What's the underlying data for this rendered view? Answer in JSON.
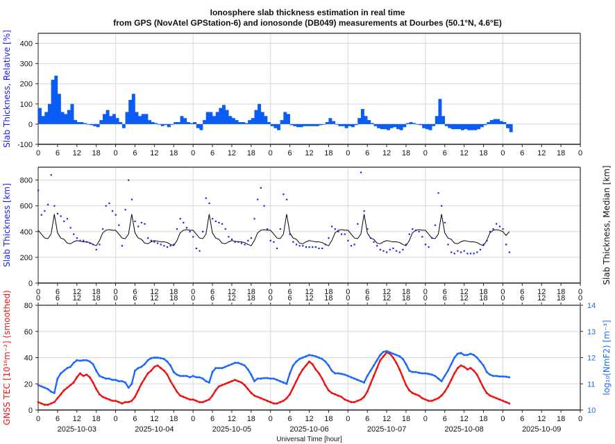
{
  "chart_data": [
    {
      "type": "bar",
      "title": "Ionosphere slab thickness estimation in real time",
      "subtitle": "from GPS (NovAtel GPStation-6) and ionosonde (DB049) measurements at Dourbes (50.1°N, 4.6°E)",
      "ylabel": "Slab Thickness, Relative [%]",
      "ylim": [
        -100,
        450
      ],
      "yticks": [
        "-100",
        "0",
        "100",
        "200",
        "300",
        "400"
      ],
      "x_unit": "hour since 2025-10-03 00:00 UT",
      "xlim": [
        0,
        168
      ],
      "values": [
        80,
        40,
        60,
        100,
        220,
        240,
        150,
        60,
        50,
        70,
        100,
        20,
        10,
        10,
        5,
        0,
        -5,
        -10,
        -15,
        20,
        50,
        70,
        40,
        50,
        30,
        10,
        -20,
        60,
        120,
        150,
        60,
        40,
        50,
        50,
        20,
        10,
        5,
        0,
        -10,
        -5,
        -15,
        0,
        10,
        10,
        40,
        30,
        10,
        5,
        10,
        -20,
        -30,
        20,
        60,
        60,
        40,
        60,
        80,
        95,
        70,
        40,
        30,
        20,
        10,
        10,
        5,
        20,
        30,
        70,
        100,
        60,
        40,
        10,
        -10,
        -20,
        -30,
        20,
        60,
        50,
        -5,
        -10,
        -15,
        -15,
        -10,
        -10,
        -10,
        -10,
        -10,
        -5,
        0,
        10,
        30,
        15,
        0,
        -10,
        -10,
        -20,
        -10,
        -15,
        -5,
        30,
        75,
        40,
        20,
        5,
        -10,
        -20,
        -25,
        -25,
        -30,
        -20,
        -15,
        -25,
        -30,
        -15,
        5,
        10,
        5,
        0,
        -5,
        -20,
        -25,
        -30,
        -10,
        40,
        125,
        40,
        -10,
        -20,
        -25,
        -25,
        -25,
        -30,
        -25,
        -30,
        -30,
        -30,
        -25,
        -15,
        -5,
        10,
        20,
        25,
        25,
        15,
        10,
        -20,
        -40
      ],
      "color": "#0a5cf5"
    },
    {
      "type": "scatter",
      "ylabel": "Slab Thickness [km]",
      "y2label": "Slab Thickness, Median [km]",
      "ylim": [
        0,
        900
      ],
      "yticks": [
        "0",
        "200",
        "400",
        "600",
        "800"
      ],
      "xlim": [
        0,
        168
      ],
      "series": [
        {
          "name": "Slab Thickness",
          "kind": "points",
          "color": "#1a1aff",
          "values": [
            720,
            530,
            560,
            610,
            840,
            600,
            540,
            520,
            480,
            500,
            430,
            380,
            350,
            330,
            330,
            320,
            310,
            300,
            260,
            300,
            420,
            600,
            620,
            560,
            530,
            450,
            290,
            570,
            800,
            650,
            480,
            440,
            470,
            460,
            350,
            330,
            320,
            310,
            300,
            290,
            280,
            290,
            300,
            420,
            500,
            470,
            430,
            400,
            360,
            270,
            250,
            400,
            660,
            620,
            500,
            480,
            470,
            460,
            420,
            360,
            340,
            320,
            320,
            310,
            300,
            330,
            350,
            500,
            650,
            740,
            600,
            420,
            330,
            320,
            270,
            420,
            690,
            650,
            380,
            320,
            300,
            290,
            290,
            280,
            280,
            280,
            280,
            270,
            270,
            300,
            350,
            440,
            420,
            400,
            380,
            380,
            330,
            290,
            300,
            460,
            860,
            560,
            420,
            350,
            320,
            290,
            260,
            250,
            240,
            260,
            270,
            250,
            240,
            260,
            300,
            380,
            420,
            410,
            400,
            360,
            300,
            280,
            350,
            450,
            700,
            600,
            470,
            300,
            240,
            230,
            250,
            240,
            250,
            230,
            230,
            230,
            240,
            260,
            300,
            330,
            400,
            420,
            460,
            440,
            420,
            300,
            240
          ]
        },
        {
          "name": "Slab Thickness, Median",
          "kind": "line",
          "color": "#000000",
          "values": [
            410,
            380,
            350,
            345,
            380,
            535,
            390,
            350,
            340,
            310,
            305,
            320,
            330,
            325,
            320,
            320,
            315,
            300,
            290,
            330,
            390,
            410,
            415,
            410,
            410,
            380,
            350,
            345,
            380,
            535,
            390,
            350,
            340,
            310,
            305,
            320,
            330,
            325,
            320,
            320,
            315,
            300,
            290,
            330,
            390,
            410,
            415,
            410,
            410,
            380,
            350,
            345,
            380,
            535,
            390,
            350,
            340,
            310,
            305,
            320,
            330,
            325,
            320,
            320,
            315,
            300,
            290,
            330,
            390,
            410,
            415,
            410,
            410,
            380,
            350,
            345,
            380,
            535,
            390,
            350,
            340,
            310,
            305,
            320,
            330,
            325,
            320,
            320,
            315,
            300,
            290,
            330,
            390,
            410,
            415,
            410,
            410,
            380,
            350,
            345,
            380,
            535,
            390,
            350,
            340,
            310,
            305,
            320,
            330,
            325,
            320,
            320,
            315,
            300,
            290,
            330,
            390,
            410,
            415,
            410,
            410,
            380,
            350,
            345,
            380,
            535,
            390,
            350,
            340,
            310,
            305,
            320,
            330,
            325,
            320,
            320,
            315,
            300,
            290,
            330,
            390,
            410,
            415,
            410,
            400,
            370,
            400
          ]
        }
      ]
    },
    {
      "type": "line",
      "ylabel": "GNSS TEC [10¹⁶m⁻²] (smoothed)",
      "y2label": "log₁₀(NmF2) [m⁻³]",
      "xlabel": "Universal Time [hour]",
      "ylim": [
        0,
        80
      ],
      "y2lim": [
        10,
        14
      ],
      "yticks": [
        "0",
        "20",
        "40",
        "60",
        "80"
      ],
      "y2ticks": [
        "10",
        "11",
        "12",
        "13",
        "14"
      ],
      "xlim": [
        0,
        168
      ],
      "series": [
        {
          "name": "GNSS TEC",
          "axis": "left",
          "color": "#ee1111",
          "values": [
            6,
            5,
            4,
            4,
            5,
            6,
            9,
            12,
            15,
            17,
            19,
            21,
            25,
            28,
            26,
            27,
            25,
            21,
            16,
            12,
            10,
            9,
            8,
            7,
            7,
            6,
            5,
            6,
            6,
            7,
            10,
            15,
            20,
            24,
            28,
            30,
            33,
            34,
            32,
            30,
            27,
            22,
            18,
            14,
            11,
            10,
            9,
            8,
            8,
            7,
            6,
            6,
            7,
            8,
            11,
            15,
            18,
            19,
            20,
            21,
            22,
            23,
            22,
            21,
            19,
            16,
            13,
            11,
            10,
            9,
            8,
            7,
            6,
            5,
            5,
            6,
            7,
            9,
            12,
            17,
            22,
            27,
            31,
            34,
            37,
            35,
            31,
            28,
            24,
            19,
            15,
            13,
            12,
            11,
            10,
            8,
            7,
            6,
            6,
            7,
            8,
            10,
            14,
            20,
            26,
            32,
            38,
            41,
            44,
            43,
            40,
            36,
            31,
            25,
            19,
            15,
            13,
            12,
            11,
            9,
            8,
            7,
            7,
            8,
            9,
            11,
            14,
            18,
            23,
            28,
            32,
            34,
            33,
            31,
            32,
            30,
            27,
            22,
            17,
            13,
            11,
            10,
            9,
            8,
            7,
            6,
            5
          ]
        },
        {
          "name": "log10(NmF2)",
          "axis": "right",
          "color": "#1a66ff",
          "values": [
            10.95,
            10.9,
            10.85,
            10.8,
            10.7,
            10.65,
            11.2,
            11.4,
            11.5,
            11.6,
            11.65,
            11.8,
            11.9,
            11.88,
            11.9,
            11.9,
            11.85,
            11.75,
            11.5,
            11.3,
            11.25,
            11.2,
            11.2,
            11.15,
            11.15,
            11.1,
            11.1,
            11.05,
            10.85,
            11.0,
            11.5,
            11.6,
            11.65,
            11.75,
            11.9,
            11.98,
            12.0,
            12.0,
            11.98,
            11.95,
            11.85,
            11.7,
            11.45,
            11.35,
            11.3,
            11.3,
            11.3,
            11.25,
            11.3,
            11.25,
            11.25,
            11.2,
            11.1,
            11.05,
            11.45,
            11.6,
            11.6,
            11.6,
            11.65,
            11.7,
            11.75,
            11.8,
            11.8,
            11.75,
            11.7,
            11.55,
            11.35,
            11.1,
            11.2,
            11.2,
            11.22,
            11.22,
            11.2,
            11.2,
            11.15,
            11.1,
            11.05,
            11.0,
            11.4,
            11.7,
            11.85,
            11.95,
            12.0,
            12.05,
            12.1,
            12.08,
            12.05,
            12.0,
            11.95,
            11.85,
            11.7,
            11.5,
            11.4,
            11.4,
            11.38,
            11.35,
            11.3,
            11.25,
            11.2,
            11.15,
            11.1,
            11.05,
            11.3,
            11.5,
            11.7,
            11.9,
            12.1,
            12.22,
            12.25,
            12.2,
            12.15,
            12.1,
            12.05,
            11.95,
            11.75,
            11.5,
            11.45,
            11.45,
            11.42,
            11.4,
            11.4,
            11.38,
            11.35,
            11.3,
            11.2,
            11.1,
            11.3,
            11.5,
            11.75,
            12.0,
            12.15,
            12.18,
            12.1,
            12.1,
            12.15,
            12.1,
            12.0,
            11.85,
            11.7,
            11.45,
            11.35,
            11.3,
            11.3,
            11.28,
            11.28,
            11.27,
            11.25
          ]
        }
      ]
    }
  ],
  "x_axis": {
    "hour_ticks": [
      "0",
      "6",
      "12",
      "18"
    ],
    "final_tick": "0",
    "dates": [
      "2025-10-03",
      "2025-10-04",
      "2025-10-05",
      "2025-10-06",
      "2025-10-07",
      "2025-10-08",
      "2025-10-09"
    ]
  }
}
